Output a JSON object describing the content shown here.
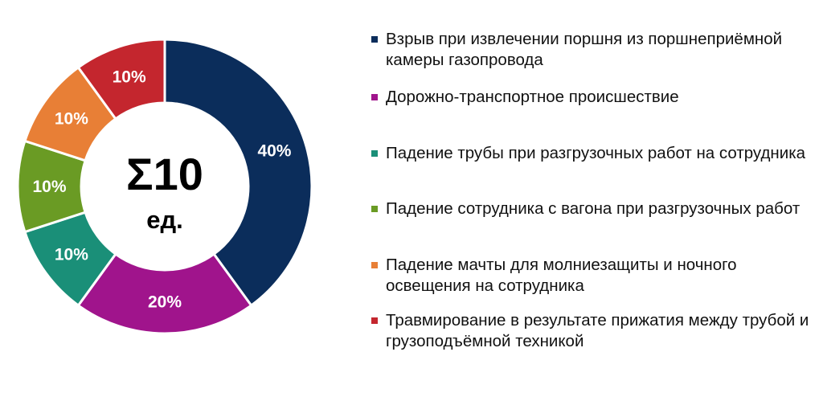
{
  "chart_data": {
    "type": "donut",
    "center": {
      "total": "Σ10",
      "unit": "ед."
    },
    "series": [
      {
        "name": "Взрыв при извлечении поршня из поршнеприёмной камеры газопровода",
        "value": 40,
        "label": "40%",
        "color": "#0b2d5b"
      },
      {
        "name": "Дорожно-транспортное происшествие",
        "value": 20,
        "label": "20%",
        "color": "#a0148c"
      },
      {
        "name": "Падение трубы при разгрузочных работ на сотрудника",
        "value": 10,
        "label": "10%",
        "color": "#1a8f78"
      },
      {
        "name": "Падение сотрудника с вагона при разгрузочных работ",
        "value": 10,
        "label": "10%",
        "color": "#6a9b24"
      },
      {
        "name": "Падение мачты для молниезащиты и ночного освещения на сотрудника",
        "value": 10,
        "label": "10%",
        "color": "#e87f36"
      },
      {
        "name": "Травмирование в результате прижатия между трубой и грузоподъёмной техникой",
        "value": 10,
        "label": "10%",
        "color": "#c4262e"
      }
    ],
    "legend_position": "right"
  }
}
